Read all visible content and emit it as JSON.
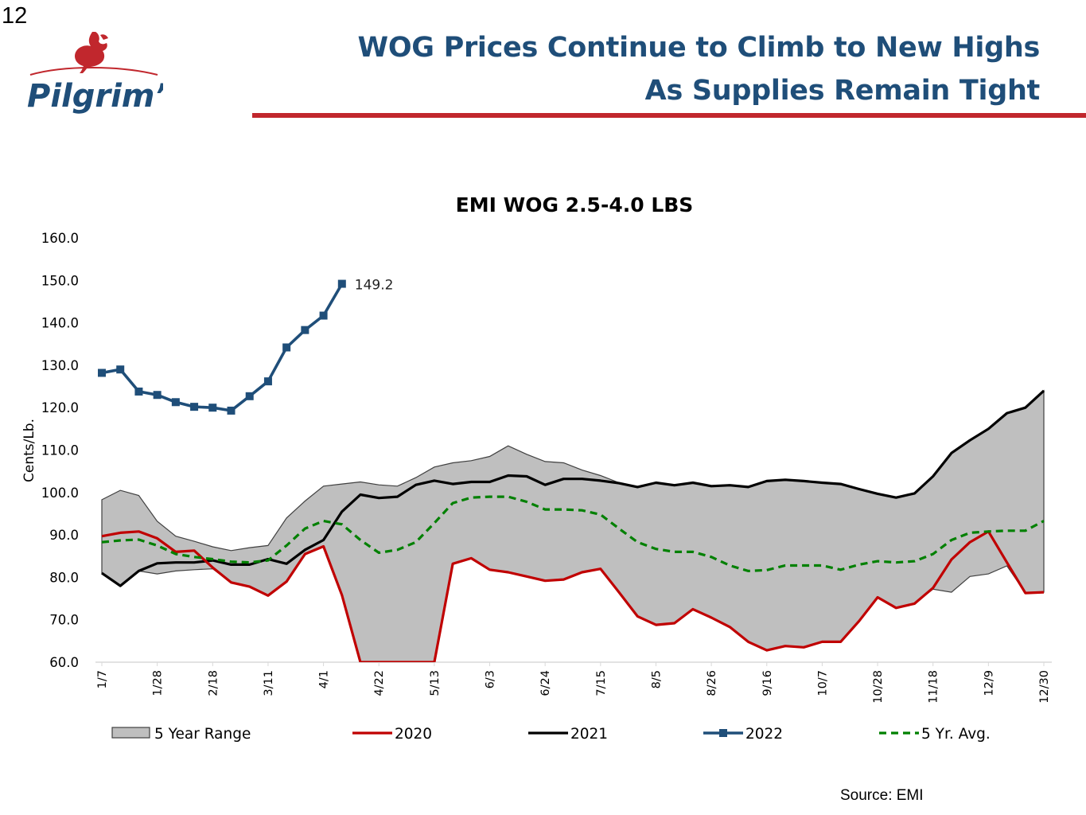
{
  "page": {
    "number": "12",
    "title_line1": "WOG Prices Continue to Climb to New Highs",
    "title_line2": "As Supplies Remain Tight",
    "brand": "Pilgrim’s",
    "source": "Source:  EMI"
  },
  "colors": {
    "title": "#1f4e79",
    "rule": "#c1272d",
    "range_fill": "#bfbfbf",
    "s2020": "#c00000",
    "s2021": "#000000",
    "s2022": "#1f4e79",
    "avg": "#008000"
  },
  "chart_data": {
    "type": "line",
    "title": "EMI WOG 2.5-4.0 LBS",
    "ylabel": "Cents/Lb.",
    "xlabel": "",
    "ylim": [
      60,
      160
    ],
    "yticks": [
      "60.0",
      "70.0",
      "80.0",
      "90.0",
      "100.0",
      "110.0",
      "120.0",
      "130.0",
      "140.0",
      "150.0",
      "160.0"
    ],
    "xtick_labels": [
      "1/7",
      "1/28",
      "2/18",
      "3/11",
      "4/1",
      "4/22",
      "5/13",
      "6/3",
      "6/24",
      "7/15",
      "8/5",
      "8/26",
      "9/16",
      "10/7",
      "10/28",
      "11/18",
      "12/9",
      "12/30"
    ],
    "legend": [
      "5 Year Range",
      "2020",
      "2021",
      "2022",
      "5 Yr. Avg."
    ],
    "legend_position": "bottom",
    "grid": false,
    "annotation": "149.2",
    "series": [
      {
        "name": "5 Year Range",
        "kind": "band",
        "upper": [
          98.3,
          100.5,
          99.3,
          93.2,
          89.7,
          88.5,
          87.2,
          86.3,
          87.0,
          87.5,
          94.0,
          98.0,
          101.5,
          102.0,
          102.5,
          101.8,
          101.5,
          103.5,
          106.0,
          107.0,
          107.5,
          108.5,
          111.0,
          109.0,
          107.3,
          107.0,
          105.3,
          104.0,
          102.3,
          101.3,
          102.3,
          101.7,
          102.3,
          101.5,
          101.7,
          101.3,
          102.7,
          103.0,
          102.7,
          102.3,
          102.0,
          100.8,
          99.7,
          98.8,
          99.8,
          103.8,
          109.3,
          112.3,
          115.0,
          118.7,
          120.0,
          124.0
        ],
        "lower": [
          81.0,
          78.0,
          81.5,
          80.8,
          81.5,
          81.8,
          82.0,
          78.8,
          77.8,
          75.7,
          79.0,
          85.5,
          87.3,
          75.8,
          55.0,
          55.0,
          55.0,
          55.0,
          55.0,
          83.2,
          84.5,
          81.8,
          81.2,
          80.2,
          79.2,
          79.5,
          81.2,
          82.0,
          76.5,
          70.8,
          68.8,
          69.2,
          72.5,
          70.5,
          68.3,
          64.8,
          62.8,
          63.8,
          63.5,
          64.8,
          64.8,
          69.7,
          75.3,
          72.8,
          73.8,
          77.2,
          76.5,
          80.2,
          80.8,
          82.7,
          76.3,
          76.5
        ]
      },
      {
        "name": "2020",
        "values": [
          89.7,
          90.5,
          90.8,
          89.2,
          86.0,
          86.3,
          82.3,
          78.8,
          77.8,
          75.7,
          79.0,
          85.5,
          87.3,
          75.8,
          55.0,
          55.0,
          55.0,
          55.0,
          55.0,
          83.2,
          84.5,
          81.8,
          81.2,
          80.2,
          79.2,
          79.5,
          81.2,
          82.0,
          76.5,
          70.8,
          68.8,
          69.2,
          72.5,
          70.5,
          68.3,
          64.8,
          62.8,
          63.8,
          63.5,
          64.8,
          64.8,
          69.7,
          75.3,
          72.8,
          73.8,
          77.5,
          84.2,
          88.3,
          90.8,
          83.5,
          76.3,
          76.5
        ]
      },
      {
        "name": "2021",
        "values": [
          81.0,
          78.0,
          81.5,
          83.3,
          83.5,
          83.5,
          84.0,
          83.0,
          83.0,
          84.3,
          83.2,
          86.5,
          88.8,
          95.5,
          99.5,
          98.7,
          99.0,
          101.8,
          102.8,
          102.0,
          102.5,
          102.5,
          104.0,
          103.8,
          101.8,
          103.2,
          103.2,
          102.8,
          102.2,
          101.3,
          102.3,
          101.7,
          102.3,
          101.5,
          101.7,
          101.3,
          102.7,
          103.0,
          102.7,
          102.3,
          102.0,
          100.8,
          99.7,
          98.8,
          99.8,
          103.8,
          109.3,
          112.3,
          115.0,
          118.7,
          120.0,
          124.0
        ]
      },
      {
        "name": "2022",
        "values": [
          128.2,
          129.0,
          123.8,
          123.0,
          121.3,
          120.2,
          120.0,
          119.3,
          122.7,
          126.2,
          134.2,
          138.3,
          141.7,
          149.2
        ]
      },
      {
        "name": "5 Yr. Avg.",
        "values": [
          88.3,
          88.7,
          88.9,
          87.5,
          85.5,
          84.8,
          84.3,
          83.7,
          83.5,
          84.0,
          87.5,
          91.5,
          93.3,
          92.5,
          88.8,
          85.8,
          86.5,
          88.3,
          92.8,
          97.5,
          98.8,
          99.0,
          99.0,
          97.8,
          96.0,
          96.0,
          95.8,
          94.8,
          91.5,
          88.3,
          86.7,
          86.0,
          86.0,
          84.8,
          82.8,
          81.5,
          81.7,
          82.8,
          82.8,
          82.8,
          81.8,
          83.0,
          83.8,
          83.5,
          83.8,
          85.5,
          88.8,
          90.5,
          90.8,
          91.0,
          91.0,
          93.3
        ]
      }
    ]
  }
}
